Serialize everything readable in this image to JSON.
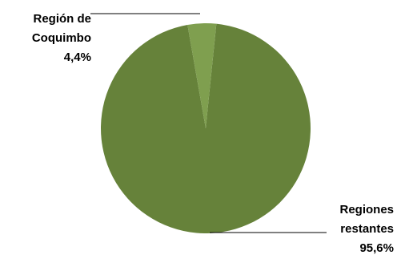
{
  "chart_data": {
    "type": "pie",
    "categories": [
      "Región de Coquimbo",
      "Regiones restantes"
    ],
    "values": [
      4.4,
      95.6
    ],
    "value_labels": [
      "4,4%",
      "95,6%"
    ],
    "colors": [
      "#7f9f4f",
      "#66823a"
    ]
  }
}
